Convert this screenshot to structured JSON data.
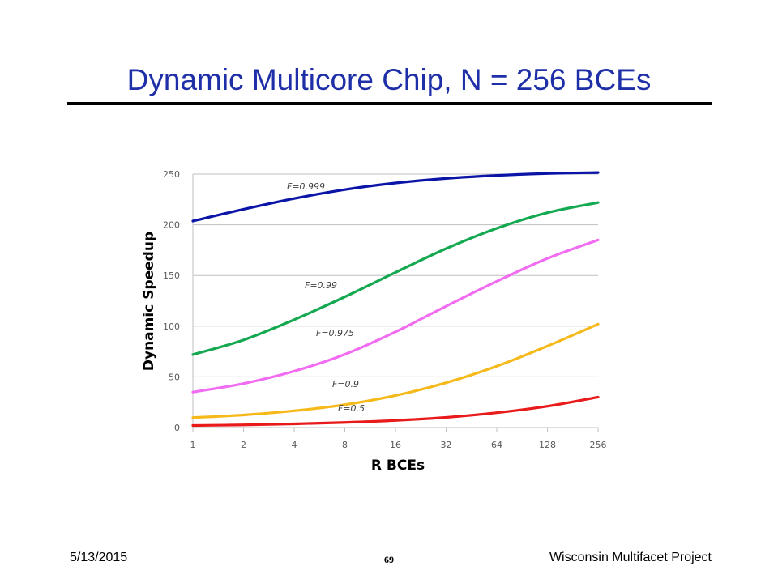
{
  "slide": {
    "title": "Dynamic Multicore Chip, N = 256 BCEs",
    "footer_date": "5/13/2015",
    "page_number": "69",
    "footer_project": "Wisconsin Multifacet Project"
  },
  "chart_data": {
    "type": "line",
    "title": "",
    "xlabel": "R BCEs",
    "ylabel": "Dynamic Speedup",
    "x_scale": "log2",
    "categories": [
      "1",
      "2",
      "4",
      "8",
      "16",
      "32",
      "64",
      "128",
      "256"
    ],
    "x": [
      1,
      2,
      4,
      8,
      16,
      32,
      64,
      128,
      256
    ],
    "ylim": [
      0,
      250
    ],
    "yticks": [
      0,
      50,
      100,
      150,
      200,
      250
    ],
    "grid": true,
    "legend": "inline labels",
    "series": [
      {
        "name": "F=0.999",
        "color": "#0a14a6",
        "values": [
          203.7,
          215.3,
          225.9,
          234.7,
          241.2,
          245.7,
          248.7,
          250.6,
          251.5
        ]
      },
      {
        "name": "F=0.99",
        "color": "#14a850",
        "values": [
          72.0,
          86.4,
          106.4,
          128.9,
          153.0,
          176.5,
          196.5,
          211.9,
          221.9
        ]
      },
      {
        "name": "F=0.975",
        "color": "#f26cf2",
        "values": [
          35.0,
          43.4,
          55.6,
          72.2,
          94.4,
          119.7,
          144.2,
          166.8,
          185.0
        ]
      },
      {
        "name": "F=0.9",
        "color": "#f5b91a",
        "values": [
          9.8,
          12.4,
          16.5,
          22.5,
          31.6,
          44.2,
          60.5,
          80.4,
          102.0
        ]
      },
      {
        "name": "F=0.5",
        "color": "#e81a1a",
        "values": [
          2.0,
          2.6,
          3.6,
          5.0,
          7.0,
          10.0,
          14.6,
          21.0,
          30.0
        ]
      }
    ]
  }
}
